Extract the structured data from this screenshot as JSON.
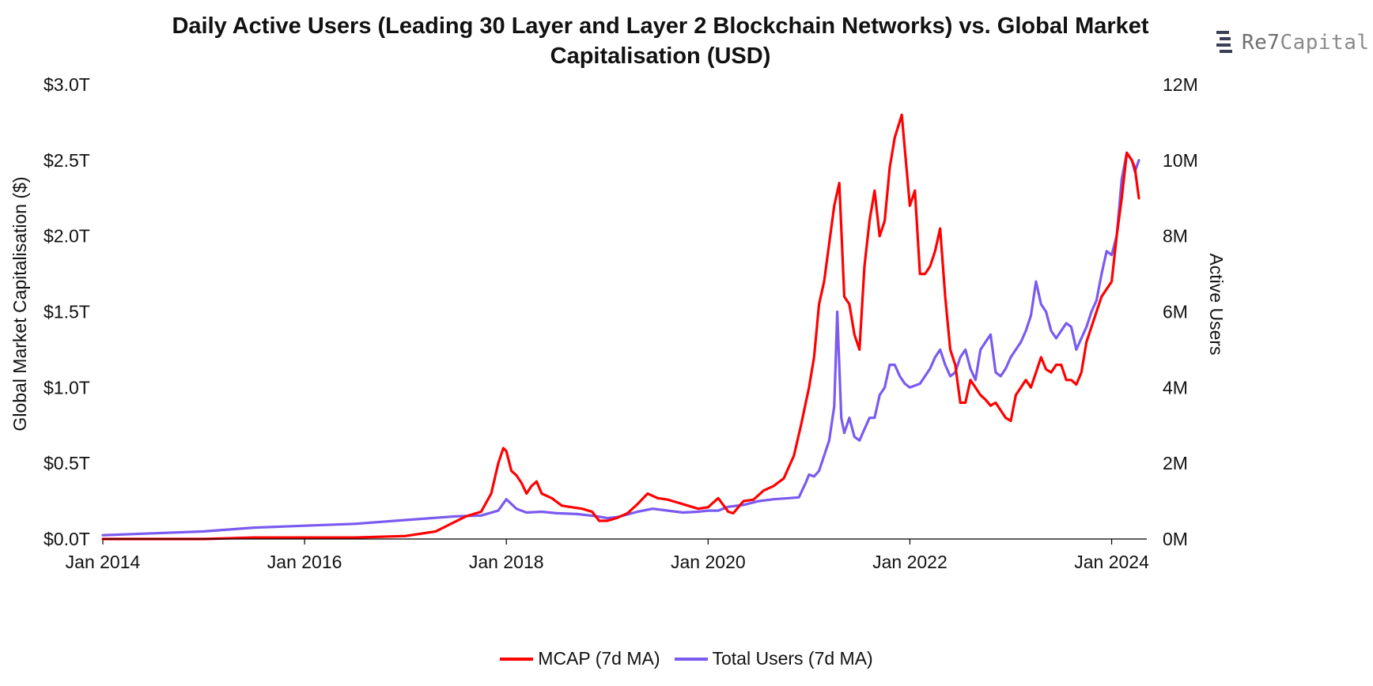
{
  "brand": {
    "logo_icon": "re7-logo-icon",
    "name_a": "Re7",
    "name_b": "Capital"
  },
  "colors": {
    "mcap": "#ff0000",
    "users": "#7a5af0",
    "axis": "#000000"
  },
  "chart_data": {
    "type": "line",
    "title": "Daily Active Users (Leading 30 Layer and Layer 2 Blockchain Networks) vs. Global Market Capitalisation (USD)",
    "xlabel": "",
    "ylabel": "Global Market Capitalisation ($)",
    "y2label": "Active Users",
    "xlim": [
      2014.0,
      2024.27
    ],
    "ylim": [
      0,
      3.0
    ],
    "y2lim": [
      0,
      12
    ],
    "x_ticks": [
      2014,
      2016,
      2018,
      2020,
      2022,
      2024
    ],
    "x_tick_labels": [
      "Jan 2014",
      "Jan 2016",
      "Jan 2018",
      "Jan 2020",
      "Jan 2022",
      "Jan 2024"
    ],
    "y_ticks": [
      0,
      0.5,
      1.0,
      1.5,
      2.0,
      2.5,
      3.0
    ],
    "y_tick_labels": [
      "$0.0T",
      "$0.5T",
      "$1.0T",
      "$1.5T",
      "$2.0T",
      "$2.5T",
      "$3.0T"
    ],
    "y2_ticks": [
      0,
      2,
      4,
      6,
      8,
      10,
      12
    ],
    "y2_tick_labels": [
      "0M",
      "2M",
      "4M",
      "6M",
      "8M",
      "10M",
      "12M"
    ],
    "legend_position": "bottom-center",
    "series": [
      {
        "name": "MCAP (7d MA)",
        "axis": "left",
        "unit": "trillion USD",
        "x": [
          2014.0,
          2014.5,
          2015.0,
          2015.5,
          2016.0,
          2016.5,
          2017.0,
          2017.3,
          2017.45,
          2017.6,
          2017.75,
          2017.85,
          2017.92,
          2017.97,
          2018.0,
          2018.05,
          2018.1,
          2018.15,
          2018.2,
          2018.25,
          2018.3,
          2018.35,
          2018.45,
          2018.55,
          2018.65,
          2018.75,
          2018.85,
          2018.92,
          2019.0,
          2019.1,
          2019.2,
          2019.3,
          2019.4,
          2019.5,
          2019.6,
          2019.7,
          2019.8,
          2019.9,
          2020.0,
          2020.05,
          2020.1,
          2020.2,
          2020.25,
          2020.35,
          2020.45,
          2020.55,
          2020.65,
          2020.75,
          2020.85,
          2020.92,
          2021.0,
          2021.05,
          2021.1,
          2021.15,
          2021.2,
          2021.25,
          2021.3,
          2021.35,
          2021.4,
          2021.45,
          2021.5,
          2021.55,
          2021.6,
          2021.65,
          2021.7,
          2021.75,
          2021.8,
          2021.85,
          2021.92,
          2022.0,
          2022.05,
          2022.1,
          2022.15,
          2022.2,
          2022.25,
          2022.3,
          2022.35,
          2022.4,
          2022.45,
          2022.5,
          2022.55,
          2022.6,
          2022.65,
          2022.7,
          2022.75,
          2022.8,
          2022.85,
          2022.9,
          2022.95,
          2023.0,
          2023.05,
          2023.1,
          2023.15,
          2023.2,
          2023.25,
          2023.3,
          2023.35,
          2023.4,
          2023.45,
          2023.5,
          2023.55,
          2023.6,
          2023.65,
          2023.7,
          2023.75,
          2023.8,
          2023.85,
          2023.9,
          2023.95,
          2024.0,
          2024.05,
          2024.1,
          2024.15,
          2024.2,
          2024.23,
          2024.27
        ],
        "values": [
          0.0,
          0.0,
          0.0,
          0.01,
          0.01,
          0.01,
          0.02,
          0.05,
          0.1,
          0.15,
          0.18,
          0.3,
          0.5,
          0.6,
          0.58,
          0.45,
          0.42,
          0.37,
          0.3,
          0.35,
          0.38,
          0.3,
          0.27,
          0.22,
          0.21,
          0.2,
          0.18,
          0.12,
          0.12,
          0.14,
          0.17,
          0.23,
          0.3,
          0.27,
          0.26,
          0.24,
          0.22,
          0.2,
          0.21,
          0.24,
          0.27,
          0.18,
          0.17,
          0.25,
          0.26,
          0.32,
          0.35,
          0.4,
          0.55,
          0.75,
          1.0,
          1.2,
          1.55,
          1.7,
          1.95,
          2.2,
          2.35,
          1.6,
          1.55,
          1.35,
          1.25,
          1.8,
          2.1,
          2.3,
          2.0,
          2.1,
          2.45,
          2.65,
          2.8,
          2.2,
          2.3,
          1.75,
          1.75,
          1.8,
          1.9,
          2.05,
          1.6,
          1.25,
          1.15,
          0.9,
          0.9,
          1.05,
          1.0,
          0.95,
          0.92,
          0.88,
          0.9,
          0.85,
          0.8,
          0.78,
          0.95,
          1.0,
          1.05,
          1.0,
          1.1,
          1.2,
          1.12,
          1.1,
          1.15,
          1.15,
          1.05,
          1.05,
          1.02,
          1.1,
          1.3,
          1.4,
          1.5,
          1.6,
          1.65,
          1.7,
          2.0,
          2.25,
          2.55,
          2.5,
          2.45,
          2.25
        ]
      },
      {
        "name": "Total Users (7d MA)",
        "axis": "right",
        "unit": "million users",
        "x": [
          2014.0,
          2014.5,
          2015.0,
          2015.5,
          2016.0,
          2016.5,
          2017.0,
          2017.5,
          2017.75,
          2017.92,
          2018.0,
          2018.1,
          2018.2,
          2018.35,
          2018.5,
          2018.7,
          2018.9,
          2019.0,
          2019.1,
          2019.2,
          2019.3,
          2019.45,
          2019.6,
          2019.75,
          2019.9,
          2020.0,
          2020.1,
          2020.2,
          2020.35,
          2020.5,
          2020.65,
          2020.8,
          2020.9,
          2020.97,
          2021.0,
          2021.05,
          2021.1,
          2021.15,
          2021.2,
          2021.25,
          2021.28,
          2021.32,
          2021.35,
          2021.4,
          2021.45,
          2021.5,
          2021.55,
          2021.6,
          2021.65,
          2021.7,
          2021.75,
          2021.8,
          2021.85,
          2021.9,
          2021.95,
          2022.0,
          2022.1,
          2022.2,
          2022.25,
          2022.3,
          2022.35,
          2022.4,
          2022.45,
          2022.5,
          2022.55,
          2022.6,
          2022.65,
          2022.7,
          2022.75,
          2022.8,
          2022.85,
          2022.9,
          2022.95,
          2023.0,
          2023.05,
          2023.1,
          2023.15,
          2023.2,
          2023.25,
          2023.3,
          2023.35,
          2023.4,
          2023.45,
          2023.5,
          2023.55,
          2023.6,
          2023.65,
          2023.7,
          2023.75,
          2023.8,
          2023.85,
          2023.9,
          2023.95,
          2024.0,
          2024.05,
          2024.1,
          2024.15,
          2024.2,
          2024.23,
          2024.27
        ],
        "values": [
          0.1,
          0.15,
          0.2,
          0.3,
          0.35,
          0.4,
          0.5,
          0.6,
          0.62,
          0.75,
          1.05,
          0.8,
          0.7,
          0.72,
          0.68,
          0.66,
          0.6,
          0.55,
          0.58,
          0.65,
          0.72,
          0.8,
          0.75,
          0.7,
          0.72,
          0.75,
          0.75,
          0.85,
          0.9,
          1.0,
          1.05,
          1.08,
          1.1,
          1.5,
          1.7,
          1.65,
          1.8,
          2.2,
          2.6,
          3.5,
          6.0,
          3.2,
          2.8,
          3.2,
          2.7,
          2.6,
          2.9,
          3.2,
          3.2,
          3.8,
          4.0,
          4.6,
          4.6,
          4.3,
          4.1,
          4.0,
          4.1,
          4.5,
          4.8,
          5.0,
          4.6,
          4.3,
          4.4,
          4.8,
          5.0,
          4.5,
          4.2,
          5.0,
          5.2,
          5.4,
          4.4,
          4.3,
          4.5,
          4.8,
          5.0,
          5.2,
          5.5,
          5.9,
          6.8,
          6.2,
          6.0,
          5.5,
          5.3,
          5.5,
          5.7,
          5.6,
          5.0,
          5.3,
          5.6,
          6.0,
          6.3,
          7.0,
          7.6,
          7.5,
          8.0,
          9.5,
          10.2,
          10.0,
          9.7,
          10.0
        ]
      }
    ]
  }
}
